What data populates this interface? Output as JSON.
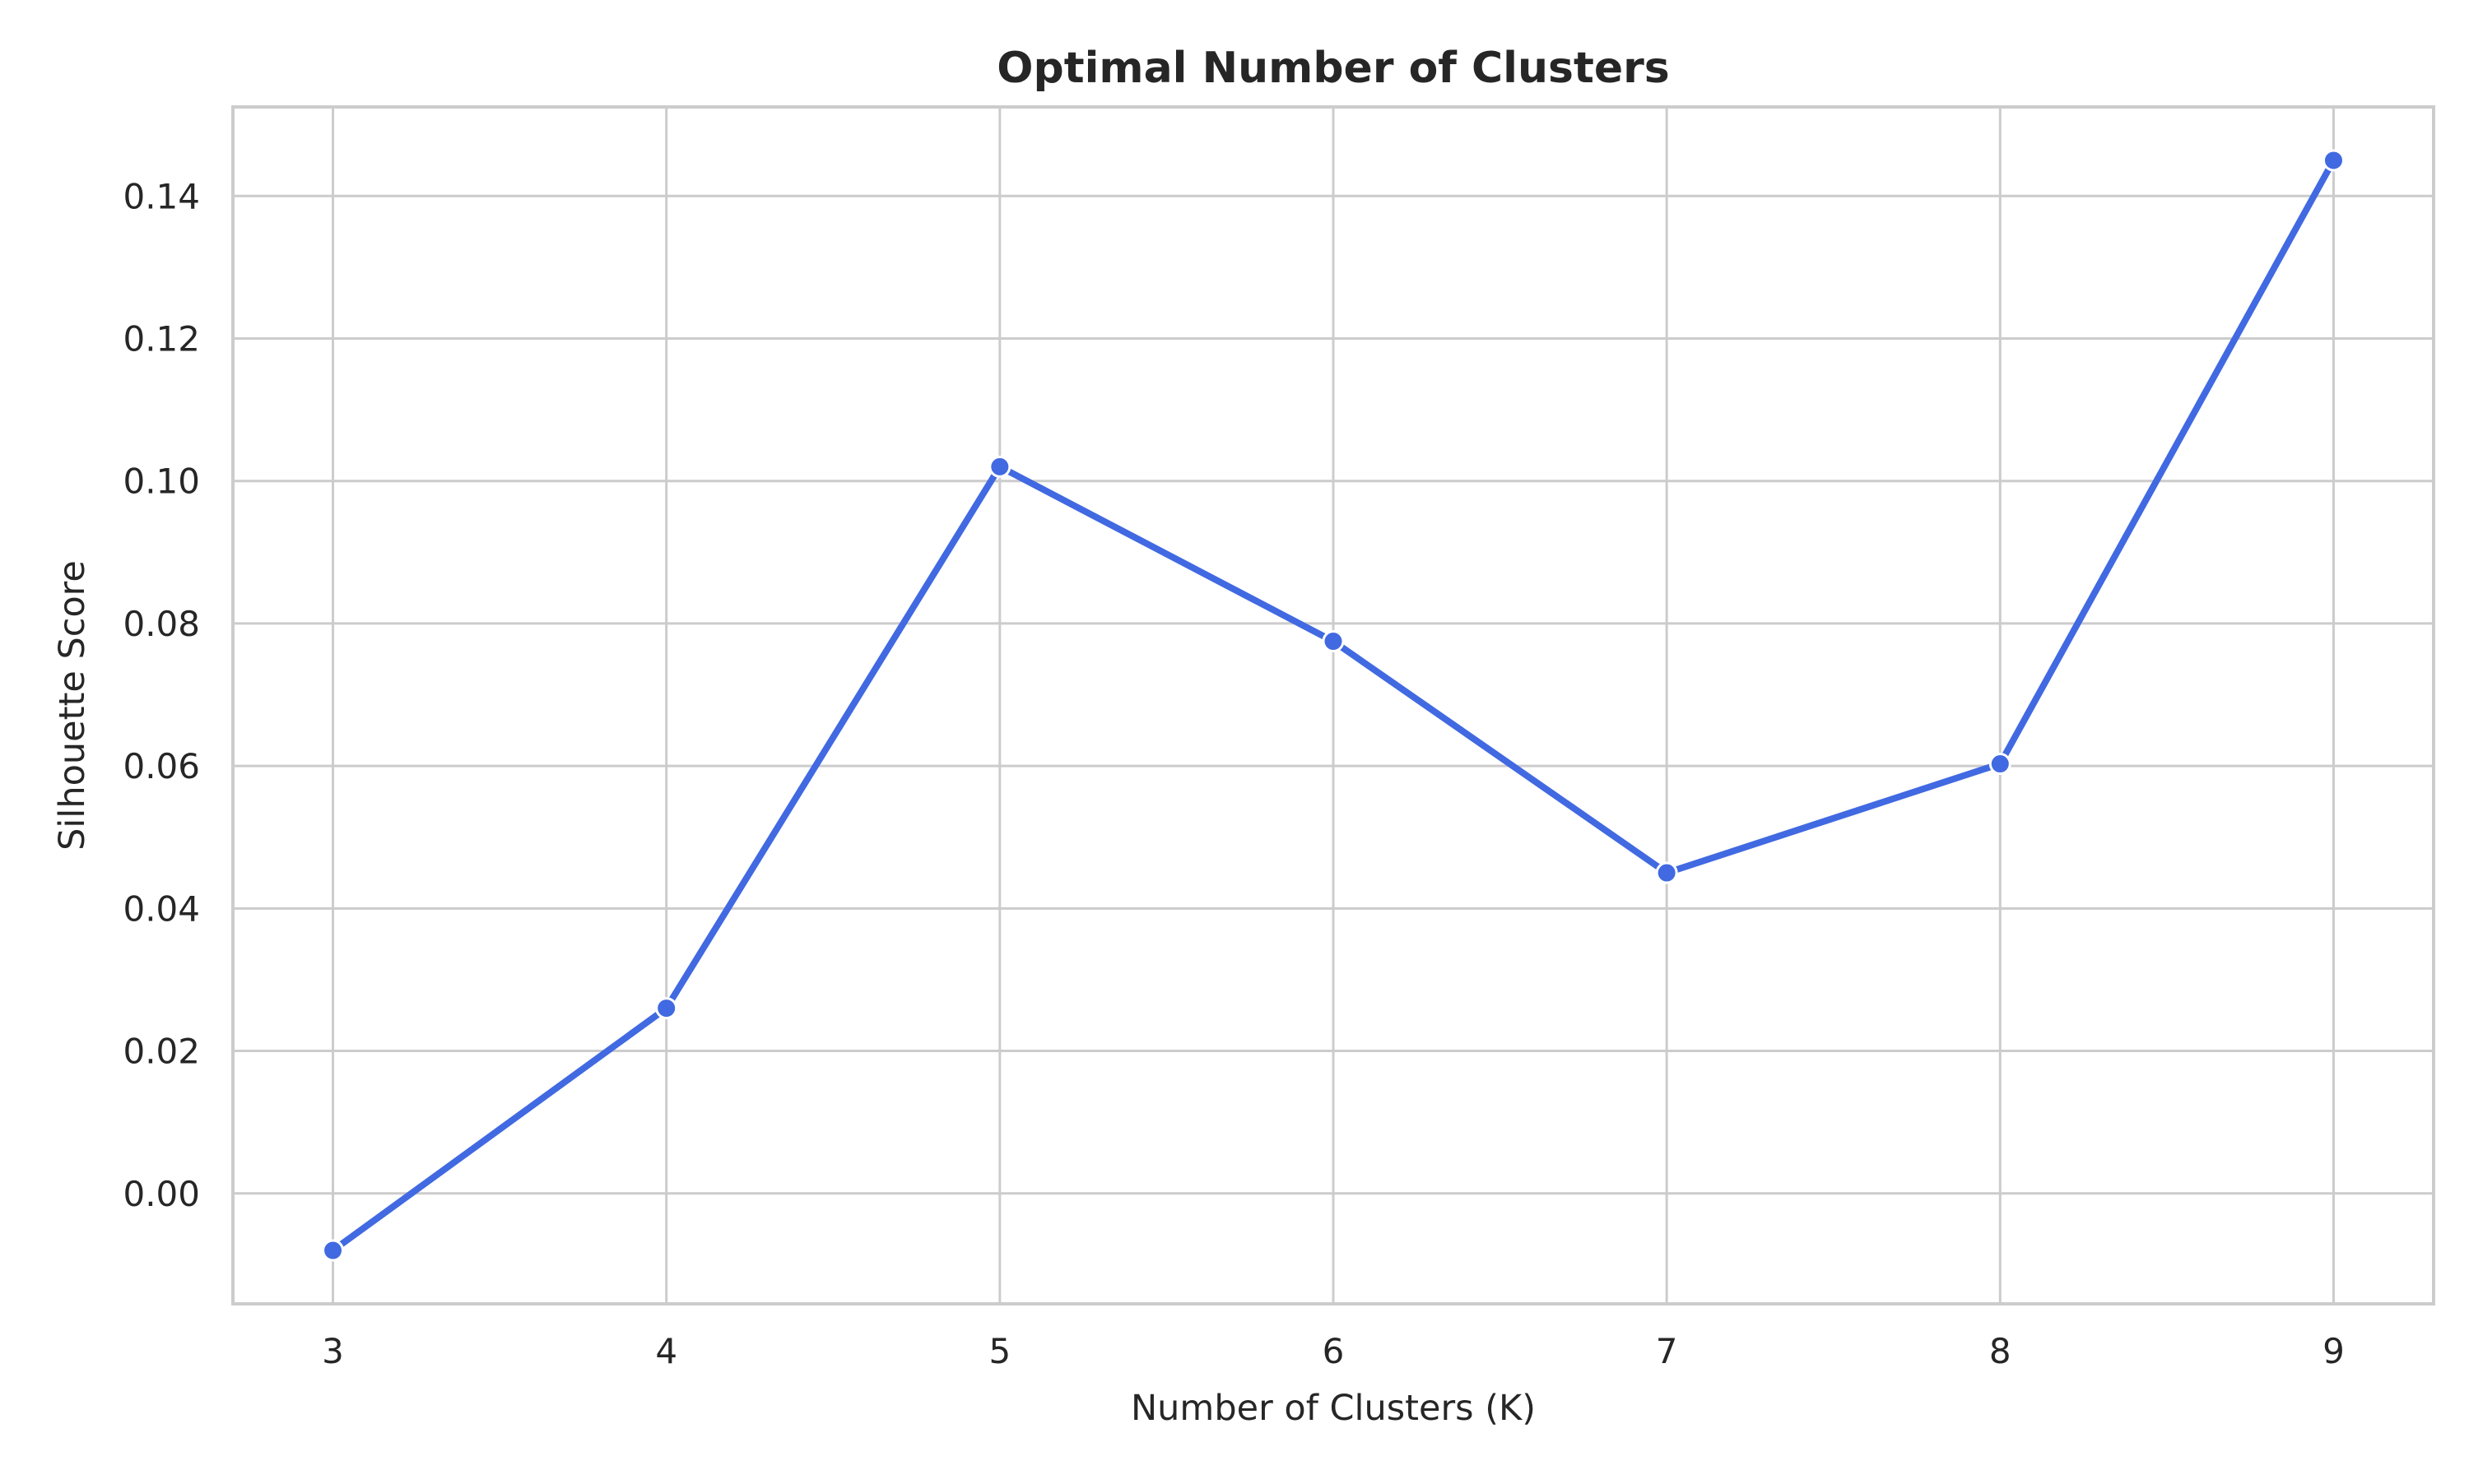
{
  "chart_data": {
    "type": "line",
    "title": "Optimal Number of Clusters",
    "xlabel": "Number of Clusters (K)",
    "ylabel": "Silhouette Score",
    "x": [
      3,
      4,
      5,
      6,
      7,
      8,
      9
    ],
    "series": [
      {
        "values": [
          -0.008,
          0.026,
          0.102,
          0.0775,
          0.045,
          0.0603,
          0.145
        ],
        "color": "#4169e1"
      }
    ],
    "xlim": [
      2.7,
      9.3
    ],
    "ylim": [
      -0.0155,
      0.1525
    ],
    "yticks": [
      "0.00",
      "0.02",
      "0.04",
      "0.06",
      "0.08",
      "0.10",
      "0.12",
      "0.14"
    ],
    "xticks": [
      "3",
      "4",
      "5",
      "6",
      "7",
      "8",
      "9"
    ],
    "grid": true,
    "marker": "circle"
  }
}
